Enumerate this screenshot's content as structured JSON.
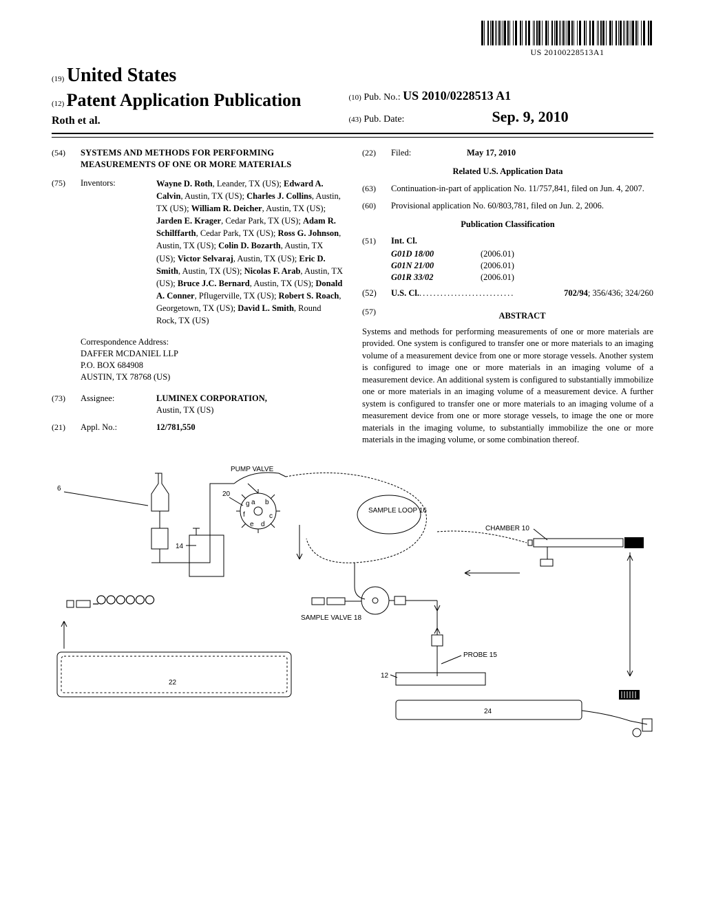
{
  "barcode_number": "US 20100228513A1",
  "header": {
    "country_code": "(19)",
    "country": "United States",
    "pub_type_code": "(12)",
    "pub_type": "Patent Application Publication",
    "authors_line": "Roth et al.",
    "pub_no_code": "(10)",
    "pub_no_label": "Pub. No.:",
    "pub_no": "US 2010/0228513 A1",
    "pub_date_code": "(43)",
    "pub_date_label": "Pub. Date:",
    "pub_date": "Sep. 9, 2010"
  },
  "title": {
    "code": "(54)",
    "text": "SYSTEMS AND METHODS FOR PERFORMING MEASUREMENTS OF ONE OR MORE MATERIALS"
  },
  "inventors": {
    "code": "(75)",
    "label": "Inventors:",
    "list": [
      {
        "name": "Wayne D. Roth",
        "loc": "Leander, TX (US)"
      },
      {
        "name": "Edward A. Calvin",
        "loc": "Austin, TX (US)"
      },
      {
        "name": "Charles J. Collins",
        "loc": "Austin, TX (US)"
      },
      {
        "name": "William R. Deicher",
        "loc": "Austin, TX (US)"
      },
      {
        "name": "Jarden E. Krager",
        "loc": "Cedar Park, TX (US)"
      },
      {
        "name": "Adam R. Schilffarth",
        "loc": "Cedar Park, TX (US)"
      },
      {
        "name": "Ross G. Johnson",
        "loc": "Austin, TX (US)"
      },
      {
        "name": "Colin D. Bozarth",
        "loc": "Austin, TX (US)"
      },
      {
        "name": "Victor Selvaraj",
        "loc": "Austin, TX (US)"
      },
      {
        "name": "Eric D. Smith",
        "loc": "Austin, TX (US)"
      },
      {
        "name": "Nicolas F. Arab",
        "loc": "Austin, TX (US)"
      },
      {
        "name": "Bruce J.C. Bernard",
        "loc": "Austin, TX (US)"
      },
      {
        "name": "Donald A. Conner",
        "loc": "Pflugerville, TX (US)"
      },
      {
        "name": "Robert S. Roach",
        "loc": "Georgetown, TX (US)"
      },
      {
        "name": "David L. Smith",
        "loc": "Round Rock, TX (US)"
      }
    ]
  },
  "correspondence": {
    "label": "Correspondence Address:",
    "lines": [
      "DAFFER MCDANIEL LLP",
      "P.O. BOX 684908",
      "AUSTIN, TX 78768 (US)"
    ]
  },
  "assignee": {
    "code": "(73)",
    "label": "Assignee:",
    "name": "LUMINEX CORPORATION,",
    "loc": "Austin, TX (US)"
  },
  "appl_no": {
    "code": "(21)",
    "label": "Appl. No.:",
    "value": "12/781,550"
  },
  "filed": {
    "code": "(22)",
    "label": "Filed:",
    "value": "May 17, 2010"
  },
  "related": {
    "heading": "Related U.S. Application Data",
    "items": [
      {
        "code": "(63)",
        "text": "Continuation-in-part of application No. 11/757,841, filed on Jun. 4, 2007."
      },
      {
        "code": "(60)",
        "text": "Provisional application No. 60/803,781, filed on Jun. 2, 2006."
      }
    ]
  },
  "classification": {
    "heading": "Publication Classification",
    "int_cl": {
      "code": "(51)",
      "label": "Int. Cl.",
      "rows": [
        {
          "code": "G01D 18/00",
          "year": "(2006.01)"
        },
        {
          "code": "G01N 21/00",
          "year": "(2006.01)"
        },
        {
          "code": "G01R 33/02",
          "year": "(2006.01)"
        }
      ]
    },
    "us_cl": {
      "code": "(52)",
      "label": "U.S. Cl.",
      "value": "702/94; 356/436; 324/260"
    }
  },
  "abstract": {
    "code": "(57)",
    "heading": "ABSTRACT",
    "text": "Systems and methods for performing measurements of one or more materials are provided. One system is configured to transfer one or more materials to an imaging volume of a measurement device from one or more storage vessels. Another system is configured to image one or more materials in an imaging volume of a measurement device. An additional system is configured to substantially immobilize one or more materials in an imaging volume of a measurement device. A further system is configured to transfer one or more materials to an imaging volume of a measurement device from one or more storage vessels, to image the one or more materials in the imaging volume, to substantially immobilize the one or more materials in the imaging volume, or some combination thereof."
  },
  "figure": {
    "labels": {
      "pump_valve": "PUMP VALVE",
      "n20": "20",
      "n6": "6",
      "n14": "14",
      "n22": "22",
      "sample_loop": "SAMPLE LOOP 16",
      "chamber": "CHAMBER 10",
      "sample_valve": "SAMPLE VALVE 18",
      "probe": "PROBE 15",
      "n12": "12",
      "n24": "24"
    },
    "stroke": "#000000",
    "stroke_width": 1,
    "dash": "2,2"
  }
}
